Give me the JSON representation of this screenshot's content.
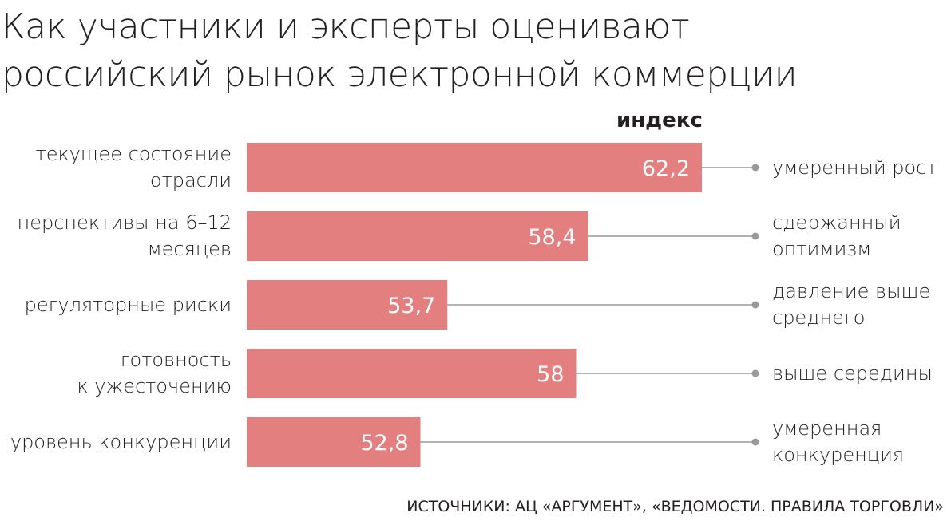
{
  "chart_data": {
    "type": "bar",
    "orientation": "horizontal",
    "title": "Как участники  и эксперты оценивают\nроссийский рынок электронной коммерции",
    "value_header": "индекс",
    "categories": [
      "текущее состояние\nотрасли",
      "перспективы на 6–12\nмесяцев",
      "регуляторные риски",
      "готовность\nк ужесточению",
      "уровень конкуренции"
    ],
    "values": [
      62.2,
      58.4,
      53.7,
      58,
      52.8
    ],
    "value_labels": [
      "62,2",
      "58,4",
      "53,7",
      "58",
      "52,8"
    ],
    "descriptions": [
      "умеренный рост",
      "сдержанный\nоптимизм",
      "давление выше\nсреднего",
      "выше середины",
      "умеренная\nконкуренция"
    ],
    "color": "#e37f7f",
    "xlim": [
      47,
      63
    ],
    "source": "ИСТОЧНИКИ: АЦ «АРГУМЕНТ», «ВЕДОМОСТИ. ПРАВИЛА ТОРГОВЛИ»"
  }
}
